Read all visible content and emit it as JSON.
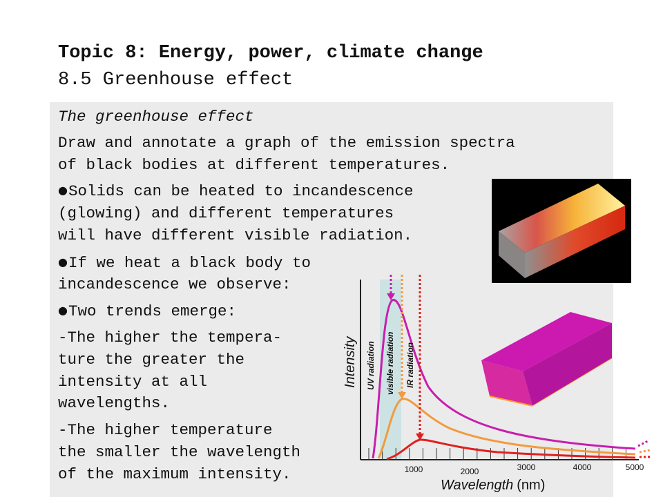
{
  "header": {
    "title": "Topic 8: Energy, power, climate change",
    "subtitle": "8.5 Greenhouse effect"
  },
  "body": {
    "section_heading": "The greenhouse effect",
    "objective_line1": "Draw and annotate a graph of the emission spectra",
    "objective_line2": "of black bodies at different temperatures.",
    "bullet1_line1": "Solids can be heated to incandescence",
    "bullet1_line2": "(glowing) and different temperatures",
    "bullet1_line3": "will have different visible radiation.",
    "bullet2_line1": "If we heat a black body to",
    "bullet2_line2": "incandescence we observe:",
    "bullet3": "Two trends emerge:",
    "trend1_line1": "-The higher the tempera-",
    "trend1_line2": "ture the greater the",
    "trend1_line3": "intensity at all",
    "trend1_line4": "wavelengths.",
    "trend2_line1": "-The higher temperature",
    "trend2_line2": "the smaller the wavelength",
    "trend2_line3": "of the maximum intensity."
  },
  "chart_data": {
    "type": "line",
    "ylabel": "Intensity",
    "xlabel_main": "Wavelength",
    "xlabel_unit": "(nm)",
    "x_ticks": [
      "1000",
      "2000",
      "3000",
      "4000",
      "5000"
    ],
    "regions": [
      "UV radiation",
      "visible radiation",
      "IR radiation"
    ],
    "series": [
      {
        "color": "#c81eae"
      },
      {
        "color": "#f39a3e"
      },
      {
        "color": "#e02020"
      }
    ]
  },
  "colors": {
    "panel_bg": "#ebebeb",
    "hot_curve": "#c81eae",
    "mid_curve": "#f39a3e",
    "cool_curve": "#e02020"
  }
}
